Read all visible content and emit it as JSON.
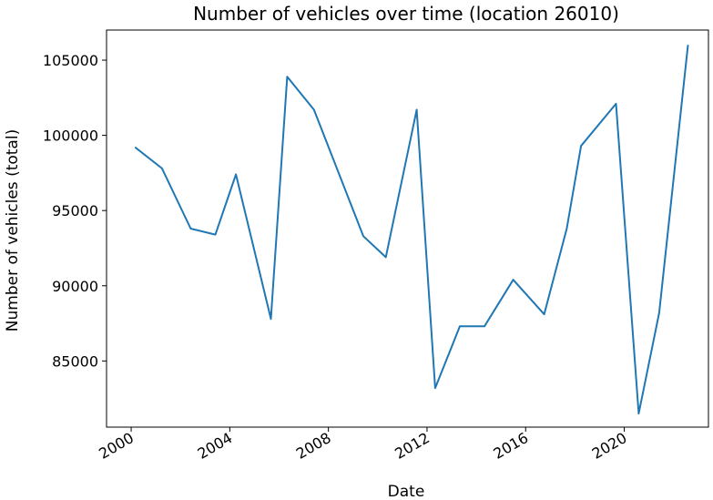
{
  "chart_data": {
    "type": "line",
    "title": "Number of vehicles over time (location 26010)",
    "xlabel": "Date",
    "ylabel": "Number of vehicles (total)",
    "x_tick_labels": [
      "2000",
      "2004",
      "2008",
      "2012",
      "2016",
      "2020"
    ],
    "y_tick_labels": [
      "85000",
      "90000",
      "95000",
      "100000",
      "105000"
    ],
    "x_ticks": [
      "2000-01-01",
      "2004-01-01",
      "2008-01-01",
      "2012-01-01",
      "2016-01-01",
      "2020-01-01"
    ],
    "y_ticks": [
      85000,
      90000,
      95000,
      100000,
      105000
    ],
    "xlim": [
      "1999-01-01",
      "2023-06-01"
    ],
    "ylim": [
      80600,
      107000
    ],
    "grid": false,
    "line_color": "#1f77b4",
    "series": [
      {
        "name": "",
        "x": [
          "2000-03-01",
          "2001-04-01",
          "2002-06-01",
          "2003-06-01",
          "2004-04-01",
          "2005-09-01",
          "2006-05-01",
          "2007-06-01",
          "2009-06-01",
          "2010-05-01",
          "2011-08-01",
          "2012-05-01",
          "2013-05-01",
          "2014-05-01",
          "2015-07-01",
          "2016-10-01",
          "2017-09-01",
          "2018-04-01",
          "2019-09-01",
          "2020-08-01",
          "2021-06-01",
          "2022-08-01"
        ],
        "values": [
          99200,
          97800,
          93800,
          93400,
          97400,
          87800,
          103900,
          101700,
          93300,
          91900,
          101700,
          83200,
          87300,
          87300,
          90400,
          88100,
          93800,
          99300,
          102100,
          81500,
          88200,
          106000
        ]
      }
    ]
  }
}
